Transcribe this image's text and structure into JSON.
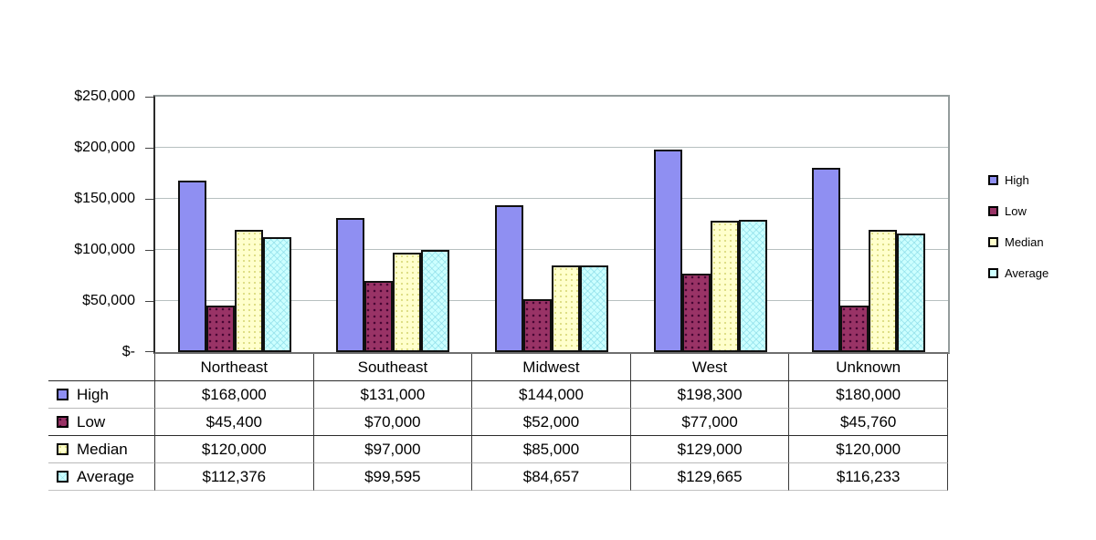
{
  "chart_data": {
    "type": "bar",
    "title": "",
    "xlabel": "",
    "ylabel": "",
    "categories": [
      "Northeast",
      "Southeast",
      "Midwest",
      "West",
      "Unknown"
    ],
    "series": [
      {
        "name": "High",
        "color": "#8f8ff2",
        "pattern": "solid",
        "values": [
          168000,
          131000,
          144000,
          198300,
          180000
        ],
        "labels": [
          "$168,000",
          "$131,000",
          "$144,000",
          "$198,300",
          "$180,000"
        ]
      },
      {
        "name": "Low",
        "color": "#993366",
        "pattern": "dots-dark",
        "values": [
          45400,
          70000,
          52000,
          77000,
          45760
        ],
        "labels": [
          "$45,400",
          "$70,000",
          "$52,000",
          "$77,000",
          "$45,760"
        ]
      },
      {
        "name": "Median",
        "color": "#ffffcc",
        "pattern": "dots-light",
        "values": [
          120000,
          97000,
          85000,
          129000,
          120000
        ],
        "labels": [
          "$120,000",
          "$97,000",
          "$85,000",
          "$129,000",
          "$120,000"
        ]
      },
      {
        "name": "Average",
        "color": "#ccffff",
        "pattern": "crosshatch",
        "values": [
          112376,
          99595,
          84657,
          129665,
          116233
        ],
        "labels": [
          "$112,376",
          "$99,595",
          "$84,657",
          "$129,665",
          "$116,233"
        ]
      }
    ],
    "y_axis": {
      "min": 0,
      "max": 250000,
      "step": 50000,
      "tick_labels": [
        "$250,000",
        "$200,000",
        "$150,000",
        "$100,000",
        "$50,000",
        "$-"
      ],
      "gridlines": true
    },
    "legend": {
      "position": "right",
      "entries": [
        "High",
        "Low",
        "Median",
        "Average"
      ]
    },
    "data_table_shown": true
  }
}
